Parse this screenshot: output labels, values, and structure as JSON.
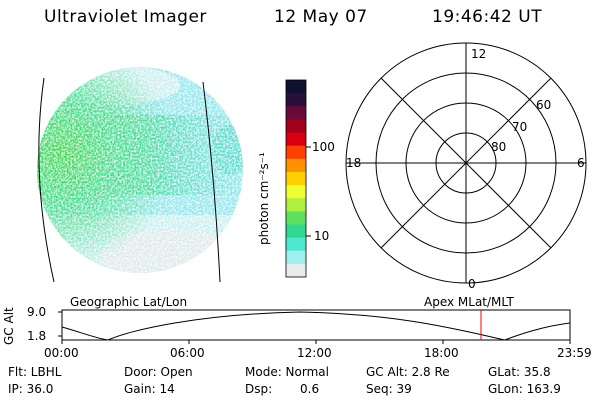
{
  "header": {
    "title": "Ultraviolet Imager",
    "date": "12 May 07",
    "time": "19:46:42 UT"
  },
  "left_panel": {
    "label": "Geographic Lat/Lon"
  },
  "colorbar": {
    "unit_label": "photon cm⁻²s⁻¹",
    "ticks": [
      "100",
      "10"
    ],
    "colors": [
      "#101030",
      "#2a0f3a",
      "#6a0a3a",
      "#a0001a",
      "#d80010",
      "#ff4000",
      "#ff9000",
      "#ffd000",
      "#f0ff30",
      "#b0f040",
      "#60e060",
      "#30d890",
      "#50e8d0",
      "#a0f0f0",
      "#e8ecec"
    ]
  },
  "polar_plot": {
    "label": "Apex MLat/MLT",
    "mlt_labels": {
      "top": "12",
      "bottom": "0",
      "left": "18",
      "right": "6"
    },
    "lat_labels": [
      "60",
      "70",
      "80"
    ]
  },
  "altitude_plot": {
    "ylabel": "GC Alt",
    "yticks": [
      "9.0",
      "1.8"
    ],
    "xticks": [
      "00:00",
      "06:00",
      "12:00",
      "18:00",
      "23:59"
    ],
    "current_marker_color": "#ff0000"
  },
  "info": {
    "flt": "Flt: LBHL",
    "ip": "IP: 36.0",
    "door": "Door: Open",
    "gain": "Gain: 14",
    "mode": "Mode: Normal",
    "dsp_label": "Dsp:",
    "dsp_value": "0.6",
    "gc_alt": "GC Alt: 2.8 Re",
    "seq": "Seq: 39",
    "glat": "GLat: 35.8",
    "glon": "GLon: 163.9"
  }
}
